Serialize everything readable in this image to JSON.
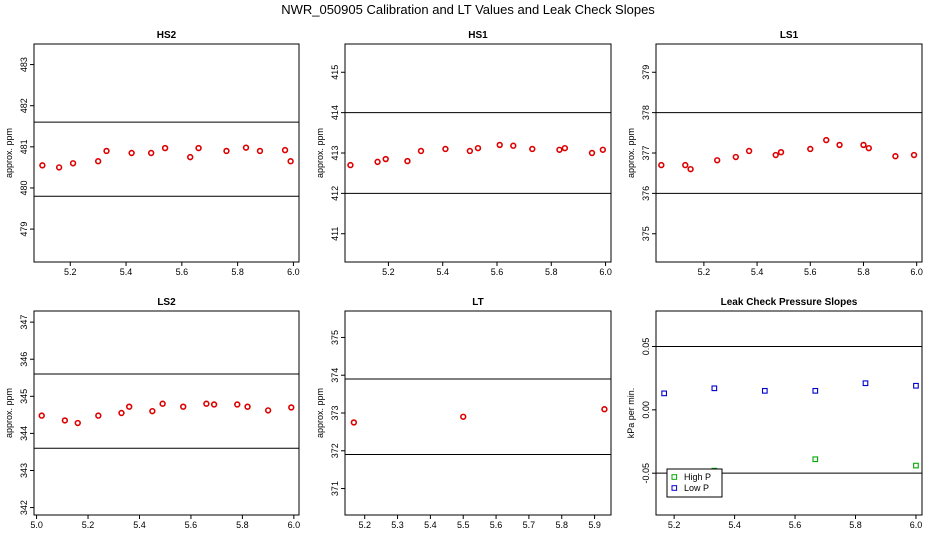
{
  "title": "NWR_050905  Calibration and LT Values and Leak Check Slopes",
  "chart_data": [
    {
      "type": "scatter",
      "title": "HS2",
      "ylabel": "approx. ppm",
      "xlim": [
        5.07,
        6.02
      ],
      "ylim": [
        478.2,
        483.5
      ],
      "xticks": [
        5.2,
        5.4,
        5.6,
        5.8,
        6.0
      ],
      "xtick_labels": [
        "5.2",
        "5.4",
        "5.6",
        "5.8",
        "6.0"
      ],
      "yticks": [
        479,
        480,
        481,
        482,
        483
      ],
      "ytick_labels": [
        "479",
        "480",
        "481",
        "482",
        "483"
      ],
      "hlines": [
        481.6,
        479.8
      ],
      "series": [
        {
          "color": "#dd0000",
          "x": [
            5.1,
            5.16,
            5.21,
            5.3,
            5.33,
            5.42,
            5.49,
            5.54,
            5.63,
            5.66,
            5.76,
            5.83,
            5.88,
            5.97,
            5.99
          ],
          "y": [
            480.55,
            480.5,
            480.6,
            480.65,
            480.9,
            480.85,
            480.85,
            480.97,
            480.75,
            480.97,
            480.9,
            480.98,
            480.9,
            480.92,
            480.65
          ]
        }
      ]
    },
    {
      "type": "scatter",
      "title": "HS1",
      "ylabel": "approx. ppm",
      "xlim": [
        5.04,
        6.02
      ],
      "ylim": [
        410.3,
        415.7
      ],
      "xticks": [
        5.2,
        5.4,
        5.6,
        5.8,
        6.0
      ],
      "xtick_labels": [
        "5.2",
        "5.4",
        "5.6",
        "5.8",
        "6.0"
      ],
      "yticks": [
        411,
        412,
        413,
        414,
        415
      ],
      "ytick_labels": [
        "411",
        "412",
        "413",
        "414",
        "415"
      ],
      "hlines": [
        414.0,
        412.0
      ],
      "series": [
        {
          "color": "#dd0000",
          "x": [
            5.06,
            5.16,
            5.19,
            5.27,
            5.32,
            5.41,
            5.5,
            5.53,
            5.61,
            5.66,
            5.73,
            5.83,
            5.85,
            5.95,
            5.99
          ],
          "y": [
            412.7,
            412.78,
            412.85,
            412.8,
            413.05,
            413.1,
            413.05,
            413.12,
            413.2,
            413.18,
            413.1,
            413.08,
            413.12,
            413.0,
            413.08
          ]
        }
      ]
    },
    {
      "type": "scatter",
      "title": "LS1",
      "ylabel": "approx. ppm",
      "xlim": [
        5.02,
        6.02
      ],
      "ylim": [
        374.3,
        379.7
      ],
      "xticks": [
        5.2,
        5.4,
        5.6,
        5.8,
        6.0
      ],
      "xtick_labels": [
        "5.2",
        "5.4",
        "5.6",
        "5.8",
        "6.0"
      ],
      "yticks": [
        375,
        376,
        377,
        378,
        379
      ],
      "ytick_labels": [
        "375",
        "376",
        "377",
        "378",
        "379"
      ],
      "hlines": [
        378.0,
        376.0
      ],
      "series": [
        {
          "color": "#dd0000",
          "x": [
            5.04,
            5.13,
            5.15,
            5.25,
            5.32,
            5.37,
            5.47,
            5.49,
            5.6,
            5.66,
            5.71,
            5.8,
            5.82,
            5.92,
            5.99
          ],
          "y": [
            376.7,
            376.7,
            376.6,
            376.82,
            376.9,
            377.05,
            376.95,
            377.02,
            377.1,
            377.32,
            377.2,
            377.2,
            377.12,
            376.92,
            376.95
          ]
        }
      ]
    },
    {
      "type": "scatter",
      "title": "LS2",
      "ylabel": "approx. ppm",
      "xlim": [
        4.99,
        6.02
      ],
      "ylim": [
        341.8,
        347.3
      ],
      "xticks": [
        5.0,
        5.2,
        5.4,
        5.6,
        5.8,
        6.0
      ],
      "xtick_labels": [
        "5.0",
        "5.2",
        "5.4",
        "5.6",
        "5.8",
        "6.0"
      ],
      "yticks": [
        342,
        343,
        344,
        345,
        346,
        347
      ],
      "ytick_labels": [
        "342",
        "343",
        "344",
        "345",
        "346",
        "347"
      ],
      "hlines": [
        345.6,
        343.6
      ],
      "series": [
        {
          "color": "#dd0000",
          "x": [
            5.02,
            5.11,
            5.16,
            5.24,
            5.33,
            5.36,
            5.45,
            5.49,
            5.57,
            5.66,
            5.69,
            5.78,
            5.82,
            5.9,
            5.99
          ],
          "y": [
            344.48,
            344.35,
            344.28,
            344.48,
            344.55,
            344.72,
            344.6,
            344.8,
            344.72,
            344.8,
            344.78,
            344.78,
            344.72,
            344.62,
            344.7
          ]
        }
      ]
    },
    {
      "type": "scatter",
      "title": "LT",
      "ylabel": "approx. ppm",
      "xlim": [
        5.14,
        5.95
      ],
      "ylim": [
        370.3,
        375.7
      ],
      "xticks": [
        5.2,
        5.3,
        5.4,
        5.5,
        5.6,
        5.7,
        5.8,
        5.9
      ],
      "xtick_labels": [
        "5.2",
        "5.3",
        "5.4",
        "5.5",
        "5.6",
        "5.7",
        "5.8",
        "5.9"
      ],
      "yticks": [
        371,
        372,
        373,
        374,
        375
      ],
      "ytick_labels": [
        "371",
        "372",
        "373",
        "374",
        "375"
      ],
      "hlines": [
        373.9,
        371.9
      ],
      "series": [
        {
          "color": "#dd0000",
          "x": [
            5.167,
            5.5,
            5.93
          ],
          "y": [
            372.75,
            372.9,
            373.1
          ]
        }
      ]
    },
    {
      "type": "scatter",
      "title": "Leak Check Pressure Slopes",
      "ylabel": "kPa per min.",
      "xlim": [
        5.14,
        6.02
      ],
      "ylim": [
        -0.083,
        0.078
      ],
      "xticks": [
        5.2,
        5.4,
        5.6,
        5.8,
        6.0
      ],
      "xtick_labels": [
        "5.2",
        "5.4",
        "5.6",
        "5.8",
        "6.0"
      ],
      "yticks": [
        -0.05,
        0.0,
        0.05
      ],
      "ytick_labels": [
        "-0.05",
        "0.00",
        "0.05"
      ],
      "hlines": [
        0.05,
        -0.05
      ],
      "legend": {
        "position": "bottom-left",
        "entries": [
          "High P",
          "Low P"
        ]
      },
      "series": [
        {
          "name": "High P",
          "color": "#00aa00",
          "marker": "square",
          "x": [
            5.333,
            5.667,
            6.0
          ],
          "y": [
            -0.048,
            -0.039,
            -0.044
          ]
        },
        {
          "name": "Low P",
          "color": "#0000cc",
          "marker": "square",
          "x": [
            5.167,
            5.333,
            5.5,
            5.667,
            5.833,
            6.0
          ],
          "y": [
            0.013,
            0.017,
            0.015,
            0.015,
            0.021,
            0.019
          ]
        }
      ]
    }
  ]
}
